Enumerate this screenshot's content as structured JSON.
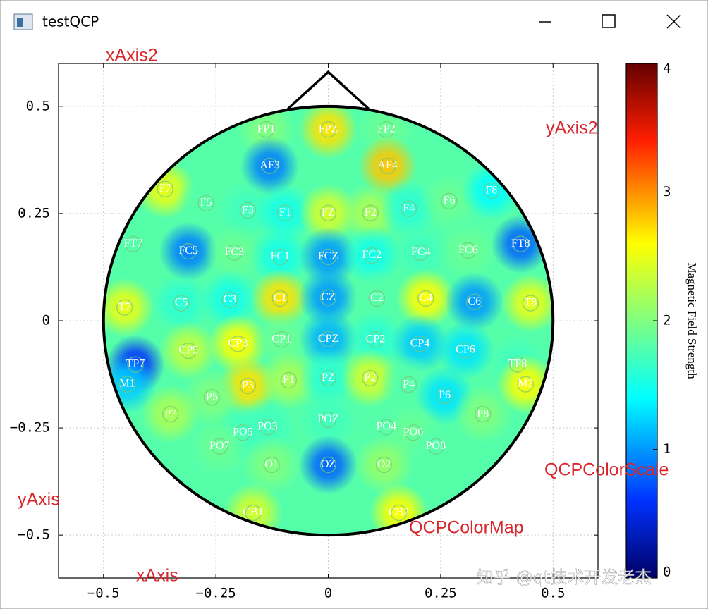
{
  "window": {
    "title": "testQCP"
  },
  "annotations": {
    "x_axis2": "xAxis2",
    "y_axis2": "yAxis2",
    "y_axis": "yAxis",
    "x_axis": "xAxis",
    "color_scale": "QCPColorScale",
    "color_map": "QCPColorMap"
  },
  "watermark": "知乎 @qt技术开发老杰",
  "chart_data": {
    "type": "heatmap",
    "xlim": [
      -0.6,
      0.6
    ],
    "ylim": [
      -0.6,
      0.6
    ],
    "xticks": [
      {
        "value": -0.5,
        "label": "−0.5"
      },
      {
        "value": -0.25,
        "label": "−0.25"
      },
      0,
      0.25,
      0.5
    ],
    "yticks": [
      {
        "value": -0.5,
        "label": "−0.5"
      },
      {
        "value": -0.25,
        "label": "−0.25"
      },
      0,
      0.25,
      0.5
    ],
    "grid": true,
    "field_value": 1.8,
    "gradient": [
      [
        0,
        "#000064"
      ],
      [
        0.15,
        "#0032ff"
      ],
      [
        0.35,
        "#00ffff"
      ],
      [
        0.65,
        "#ffff00"
      ],
      [
        0.85,
        "#ff1e00"
      ],
      [
        1,
        "#640000"
      ]
    ],
    "color_scale": {
      "label": "Magnetic Field Strength",
      "range": [
        0,
        4
      ],
      "ticks": [
        0,
        1,
        2,
        3,
        4
      ]
    },
    "electrodes": [
      {
        "label": "FP1",
        "x": -0.138,
        "y": 0.446,
        "value": 2.0
      },
      {
        "label": "FPZ",
        "x": 0,
        "y": 0.446,
        "value": 2.7
      },
      {
        "label": "FP2",
        "x": 0.129,
        "y": 0.446,
        "value": 1.9
      },
      {
        "label": "AF3",
        "x": -0.13,
        "y": 0.361,
        "value": 0.9
      },
      {
        "label": "AF4",
        "x": 0.132,
        "y": 0.361,
        "value": 2.8
      },
      {
        "label": "F7",
        "x": -0.363,
        "y": 0.307,
        "value": 2.5
      },
      {
        "label": "F5",
        "x": -0.272,
        "y": 0.274,
        "value": 1.8
      },
      {
        "label": "F3",
        "x": -0.179,
        "y": 0.257,
        "value": 1.7
      },
      {
        "label": "F1",
        "x": -0.096,
        "y": 0.251,
        "value": 1.5
      },
      {
        "label": "FZ",
        "x": 0,
        "y": 0.251,
        "value": 2.4
      },
      {
        "label": "F2",
        "x": 0.094,
        "y": 0.251,
        "value": 2.2
      },
      {
        "label": "F4",
        "x": 0.179,
        "y": 0.261,
        "value": 1.6
      },
      {
        "label": "F6",
        "x": 0.269,
        "y": 0.279,
        "value": 1.9
      },
      {
        "label": "F8",
        "x": 0.363,
        "y": 0.303,
        "value": 1.4
      },
      {
        "label": "FT7",
        "x": -0.434,
        "y": 0.179,
        "value": 1.8
      },
      {
        "label": "FC5",
        "x": -0.311,
        "y": 0.162,
        "value": 0.9
      },
      {
        "label": "FC3",
        "x": -0.209,
        "y": 0.159,
        "value": 1.9
      },
      {
        "label": "FC1",
        "x": -0.107,
        "y": 0.149,
        "value": 1.5
      },
      {
        "label": "FCZ",
        "x": 0,
        "y": 0.149,
        "value": 1.0
      },
      {
        "label": "FC2",
        "x": 0.097,
        "y": 0.152,
        "value": 1.5
      },
      {
        "label": "FC4",
        "x": 0.206,
        "y": 0.159,
        "value": 1.7
      },
      {
        "label": "FC6",
        "x": 0.311,
        "y": 0.164,
        "value": 1.9
      },
      {
        "label": "FT8",
        "x": 0.428,
        "y": 0.179,
        "value": 0.8
      },
      {
        "label": "T7",
        "x": -0.453,
        "y": 0.031,
        "value": 2.5
      },
      {
        "label": "C5",
        "x": -0.327,
        "y": 0.041,
        "value": 1.6
      },
      {
        "label": "C3",
        "x": -0.219,
        "y": 0.049,
        "value": 1.5
      },
      {
        "label": "C1",
        "x": -0.107,
        "y": 0.052,
        "value": 2.7
      },
      {
        "label": "CZ",
        "x": 0,
        "y": 0.054,
        "value": 1.0
      },
      {
        "label": "C2",
        "x": 0.108,
        "y": 0.052,
        "value": 1.8
      },
      {
        "label": "C4",
        "x": 0.217,
        "y": 0.052,
        "value": 2.6
      },
      {
        "label": "C6",
        "x": 0.325,
        "y": 0.044,
        "value": 1.0
      },
      {
        "label": "T8",
        "x": 0.45,
        "y": 0.041,
        "value": 2.5
      },
      {
        "label": "TP7",
        "x": -0.429,
        "y": -0.102,
        "value": 0.6
      },
      {
        "label": "M1",
        "x": -0.447,
        "y": -0.148,
        "value": 1.2
      },
      {
        "label": "CP5",
        "x": -0.311,
        "y": -0.07,
        "value": 2.3
      },
      {
        "label": "CP3",
        "x": -0.201,
        "y": -0.054,
        "value": 2.6
      },
      {
        "label": "CP1",
        "x": -0.104,
        "y": -0.044,
        "value": 1.9
      },
      {
        "label": "CPZ",
        "x": 0,
        "y": -0.043,
        "value": 1.1
      },
      {
        "label": "CP2",
        "x": 0.105,
        "y": -0.044,
        "value": 1.6
      },
      {
        "label": "CP4",
        "x": 0.204,
        "y": -0.054,
        "value": 1.2
      },
      {
        "label": "CP6",
        "x": 0.305,
        "y": -0.069,
        "value": 1.3
      },
      {
        "label": "TP8",
        "x": 0.421,
        "y": -0.102,
        "value": 1.7
      },
      {
        "label": "M2",
        "x": 0.439,
        "y": -0.148,
        "value": 2.6
      },
      {
        "label": "P3",
        "x": -0.179,
        "y": -0.152,
        "value": 2.7
      },
      {
        "label": "P1",
        "x": -0.088,
        "y": -0.139,
        "value": 2.2
      },
      {
        "label": "PZ",
        "x": 0,
        "y": -0.134,
        "value": 1.6
      },
      {
        "label": "P2",
        "x": 0.093,
        "y": -0.134,
        "value": 2.4
      },
      {
        "label": "P4",
        "x": 0.179,
        "y": -0.149,
        "value": 1.8
      },
      {
        "label": "P6",
        "x": 0.259,
        "y": -0.175,
        "value": 1.3
      },
      {
        "label": "P5",
        "x": -0.259,
        "y": -0.179,
        "value": 2.0
      },
      {
        "label": "P7",
        "x": -0.351,
        "y": -0.218,
        "value": 2.2
      },
      {
        "label": "P8",
        "x": 0.344,
        "y": -0.218,
        "value": 2.0
      },
      {
        "label": "PO3",
        "x": -0.135,
        "y": -0.248,
        "value": 1.7
      },
      {
        "label": "PO5",
        "x": -0.19,
        "y": -0.261,
        "value": 1.7
      },
      {
        "label": "PO7",
        "x": -0.242,
        "y": -0.293,
        "value": 1.9
      },
      {
        "label": "POZ",
        "x": 0,
        "y": -0.231,
        "value": 1.7
      },
      {
        "label": "PO4",
        "x": 0.129,
        "y": -0.248,
        "value": 1.8
      },
      {
        "label": "PO6",
        "x": 0.189,
        "y": -0.261,
        "value": 1.9
      },
      {
        "label": "PO8",
        "x": 0.239,
        "y": -0.293,
        "value": 1.8
      },
      {
        "label": "O1",
        "x": -0.126,
        "y": -0.336,
        "value": 2.0
      },
      {
        "label": "OZ",
        "x": 0,
        "y": -0.336,
        "value": 0.8
      },
      {
        "label": "O2",
        "x": 0.124,
        "y": -0.336,
        "value": 2.1
      },
      {
        "label": "CB1",
        "x": -0.167,
        "y": -0.448,
        "value": 2.4
      },
      {
        "label": "CB2",
        "x": 0.157,
        "y": -0.448,
        "value": 2.6
      }
    ]
  }
}
